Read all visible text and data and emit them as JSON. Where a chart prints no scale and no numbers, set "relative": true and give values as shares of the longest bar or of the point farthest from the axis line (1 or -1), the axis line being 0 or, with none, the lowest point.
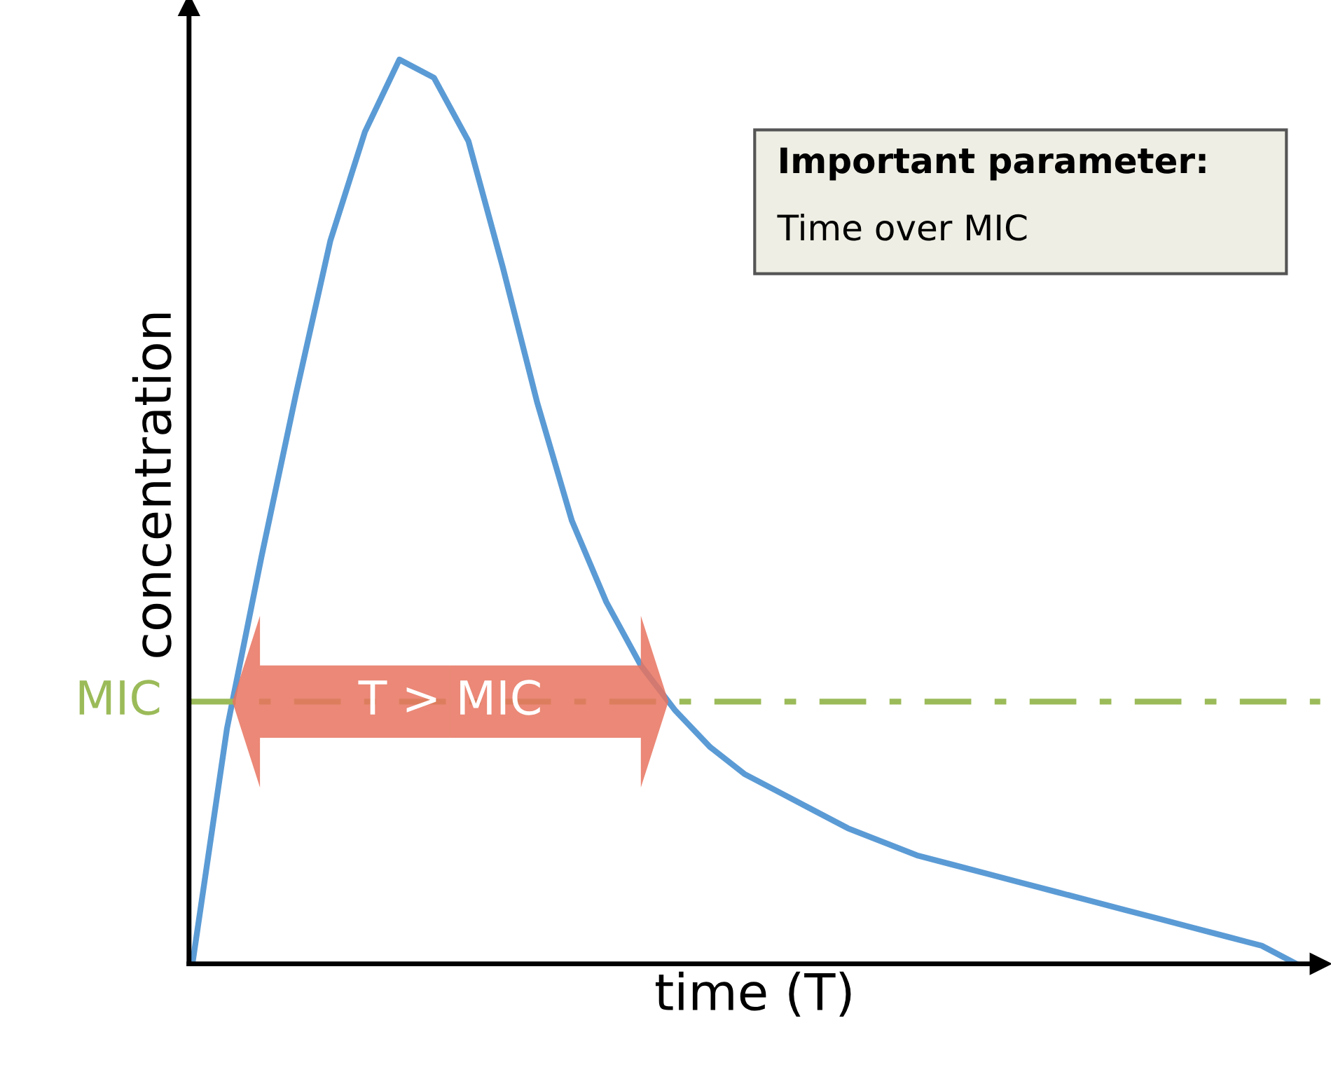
{
  "chart_data": {
    "type": "line",
    "relative": true,
    "xlabel": "time (T)",
    "ylabel": "concentration",
    "categories": [
      null,
      null,
      null,
      null,
      null,
      null,
      null,
      null,
      null,
      null,
      null,
      null,
      null,
      null,
      null,
      null,
      null,
      null,
      null,
      null,
      null,
      null,
      null,
      null,
      null,
      null,
      null,
      null,
      null,
      null,
      null,
      null,
      null
    ],
    "series": [
      {
        "color": "#5b9bd5",
        "values": [
          0,
          0.26,
          0.45,
          0.63,
          0.8,
          0.92,
          1.0,
          0.98,
          0.91,
          0.77,
          0.62,
          0.49,
          0.4,
          0.33,
          0.28,
          0.24,
          0.21,
          0.19,
          0.17,
          0.15,
          0.135,
          0.12,
          0.11,
          0.1,
          0.09,
          0.08,
          0.07,
          0.06,
          0.05,
          0.04,
          0.03,
          0.02,
          0
        ]
      }
    ],
    "ref_lines": [
      {
        "axis": "y",
        "value": 0.29,
        "label": "MIC",
        "color": "#9bbb59",
        "line_style": "dashdot"
      }
    ],
    "annotations": [
      "T > MIC",
      "Important parameter:",
      "Time over MIC"
    ],
    "tick_labels": false,
    "grid": false,
    "legend": false
  }
}
